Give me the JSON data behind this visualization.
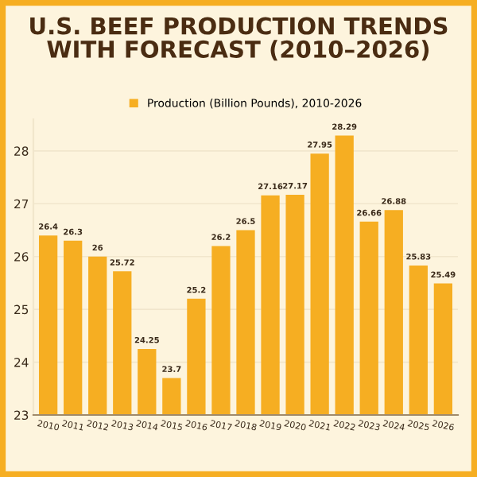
{
  "chart_data": {
    "type": "bar",
    "title": "U.S. BEEF PRODUCTION TRENDS\nWITH FORECAST (2010–2026)",
    "categories": [
      "2010",
      "2011",
      "2012",
      "2013",
      "2014",
      "2015",
      "2016",
      "2017",
      "2018",
      "2019",
      "2020",
      "2021",
      "2022",
      "2023",
      "2024",
      "2025",
      "2026"
    ],
    "series": [
      {
        "name": "Production (Billion Pounds), 2010-2026",
        "color": "#f6ae22",
        "values": [
          26.4,
          26.3,
          26,
          25.72,
          24.25,
          23.7,
          25.2,
          26.2,
          26.5,
          27.16,
          27.17,
          27.95,
          28.29,
          26.66,
          26.88,
          25.83,
          25.49
        ]
      }
    ],
    "ylim": [
      23,
      28.6
    ],
    "yticks": [
      23,
      24,
      25,
      26,
      27,
      28
    ],
    "grid": "y",
    "legend": "top",
    "data_labels": true
  }
}
